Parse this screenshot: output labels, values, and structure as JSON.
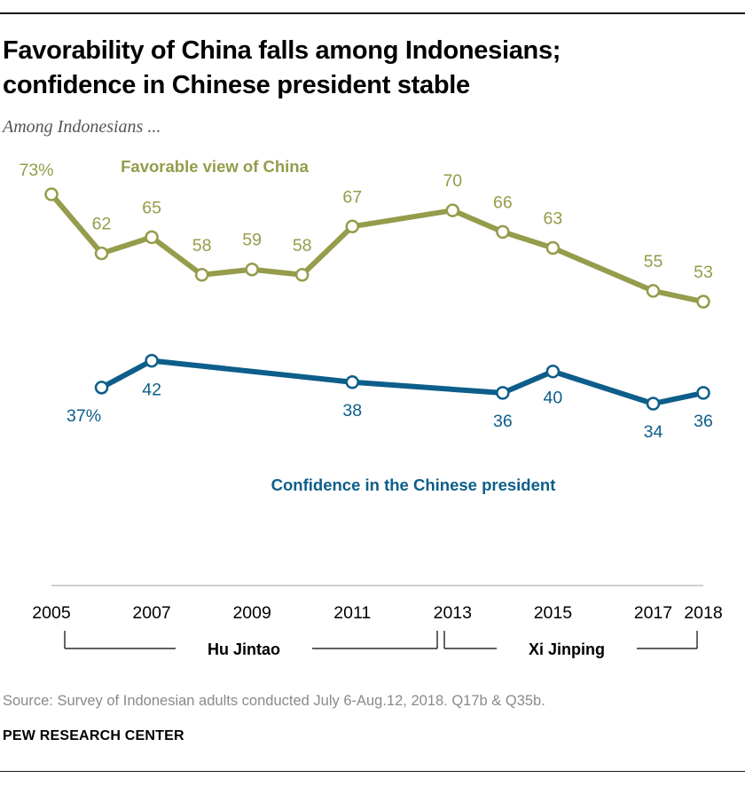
{
  "header": {
    "title_line1": "Favorability of China falls among Indonesians;",
    "title_line2": "confidence in Chinese president stable",
    "subtitle": "Among Indonesians ..."
  },
  "chart_data": {
    "type": "line",
    "title": "Favorability of China falls among Indonesians; confidence in Chinese president stable",
    "subtitle": "Among Indonesians ...",
    "xlabel": "",
    "ylabel": "",
    "x_ticks": [
      "2005",
      "2007",
      "2009",
      "2011",
      "2013",
      "2015",
      "2017",
      "2018"
    ],
    "series": [
      {
        "name": "Favorable view of China",
        "color": "#959c4b",
        "x": [
          2005,
          2006,
          2007,
          2008,
          2009,
          2010,
          2011,
          2013,
          2014,
          2015,
          2017,
          2018
        ],
        "values": [
          73,
          62,
          65,
          58,
          59,
          58,
          67,
          70,
          66,
          63,
          55,
          53
        ],
        "labels": [
          "73%",
          "62",
          "65",
          "58",
          "59",
          "58",
          "67",
          "70",
          "66",
          "63",
          "55",
          "53"
        ]
      },
      {
        "name": "Confidence in the Chinese president",
        "color": "#0d5e8a",
        "x": [
          2006,
          2007,
          2011,
          2014,
          2015,
          2017,
          2018
        ],
        "values": [
          37,
          42,
          38,
          36,
          40,
          34,
          36
        ],
        "labels": [
          "37%",
          "42",
          "38",
          "36",
          "40",
          "34",
          "36"
        ]
      }
    ],
    "leaders": [
      {
        "name": "Hu Jintao",
        "start": 2005,
        "end": 2013
      },
      {
        "name": "Xi Jinping",
        "start": 2013,
        "end": 2018
      }
    ]
  },
  "footer": {
    "source": "Source: Survey of Indonesian adults conducted July 6-Aug.12, 2018. Q17b & Q35b.",
    "brand": "PEW RESEARCH CENTER"
  }
}
